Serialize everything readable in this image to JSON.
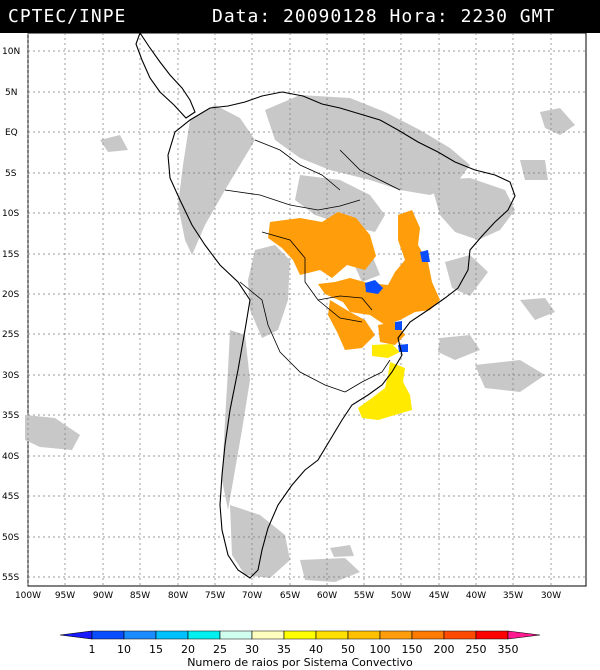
{
  "header": {
    "source": "CPTEC/INPE",
    "date_label": "Data: 20090128 Hora: 2230 GMT"
  },
  "map": {
    "lat_labels": [
      "10N",
      "5N",
      "EQ",
      "5S",
      "10S",
      "15S",
      "20S",
      "25S",
      "30S",
      "35S",
      "40S",
      "45S",
      "50S",
      "55S"
    ],
    "lon_labels": [
      "100W",
      "95W",
      "90W",
      "85W",
      "80W",
      "75W",
      "70W",
      "65W",
      "60W",
      "55W",
      "50W",
      "45W",
      "40W",
      "35W",
      "30W"
    ],
    "grid": "dotted"
  },
  "legend": {
    "values": [
      "1",
      "10",
      "15",
      "20",
      "25",
      "30",
      "35",
      "40",
      "50",
      "100",
      "150",
      "200",
      "250",
      "350"
    ],
    "colors": [
      "#1a1aff",
      "#0a4dff",
      "#1a8cff",
      "#00c0ff",
      "#00f0f0",
      "#d0fff0",
      "#ffffc0",
      "#ffff00",
      "#ffe000",
      "#ffc000",
      "#ff9d0a",
      "#ff7a00",
      "#ff4a00",
      "#ff0000",
      "#ff1a90"
    ],
    "title": "Numero de raios por Sistema Convectivo"
  }
}
